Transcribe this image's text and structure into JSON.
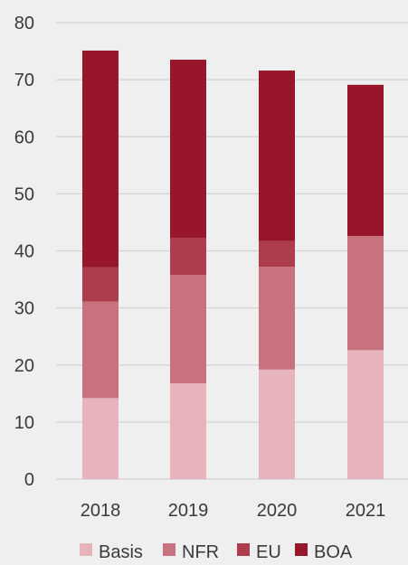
{
  "chart_data": {
    "type": "bar",
    "stacked": true,
    "categories": [
      "2018",
      "2019",
      "2020",
      "2021"
    ],
    "series": [
      {
        "name": "Basis",
        "color": "#e7b3bd",
        "values": [
          14.2,
          16.8,
          19.2,
          22.6
        ]
      },
      {
        "name": "NFR",
        "color": "#c9727f",
        "values": [
          16.9,
          19.0,
          18.0,
          20.0
        ]
      },
      {
        "name": "EU",
        "color": "#ad3c4e",
        "values": [
          6.0,
          6.5,
          4.5,
          0
        ]
      },
      {
        "name": "BOA",
        "color": "#97162c",
        "values": [
          38.0,
          31.2,
          29.9,
          26.5
        ]
      }
    ],
    "ylim": [
      0,
      80
    ],
    "yticks": [
      0,
      10,
      20,
      30,
      40,
      50,
      60,
      70,
      80
    ],
    "grid": true,
    "legend_position": "bottom"
  }
}
